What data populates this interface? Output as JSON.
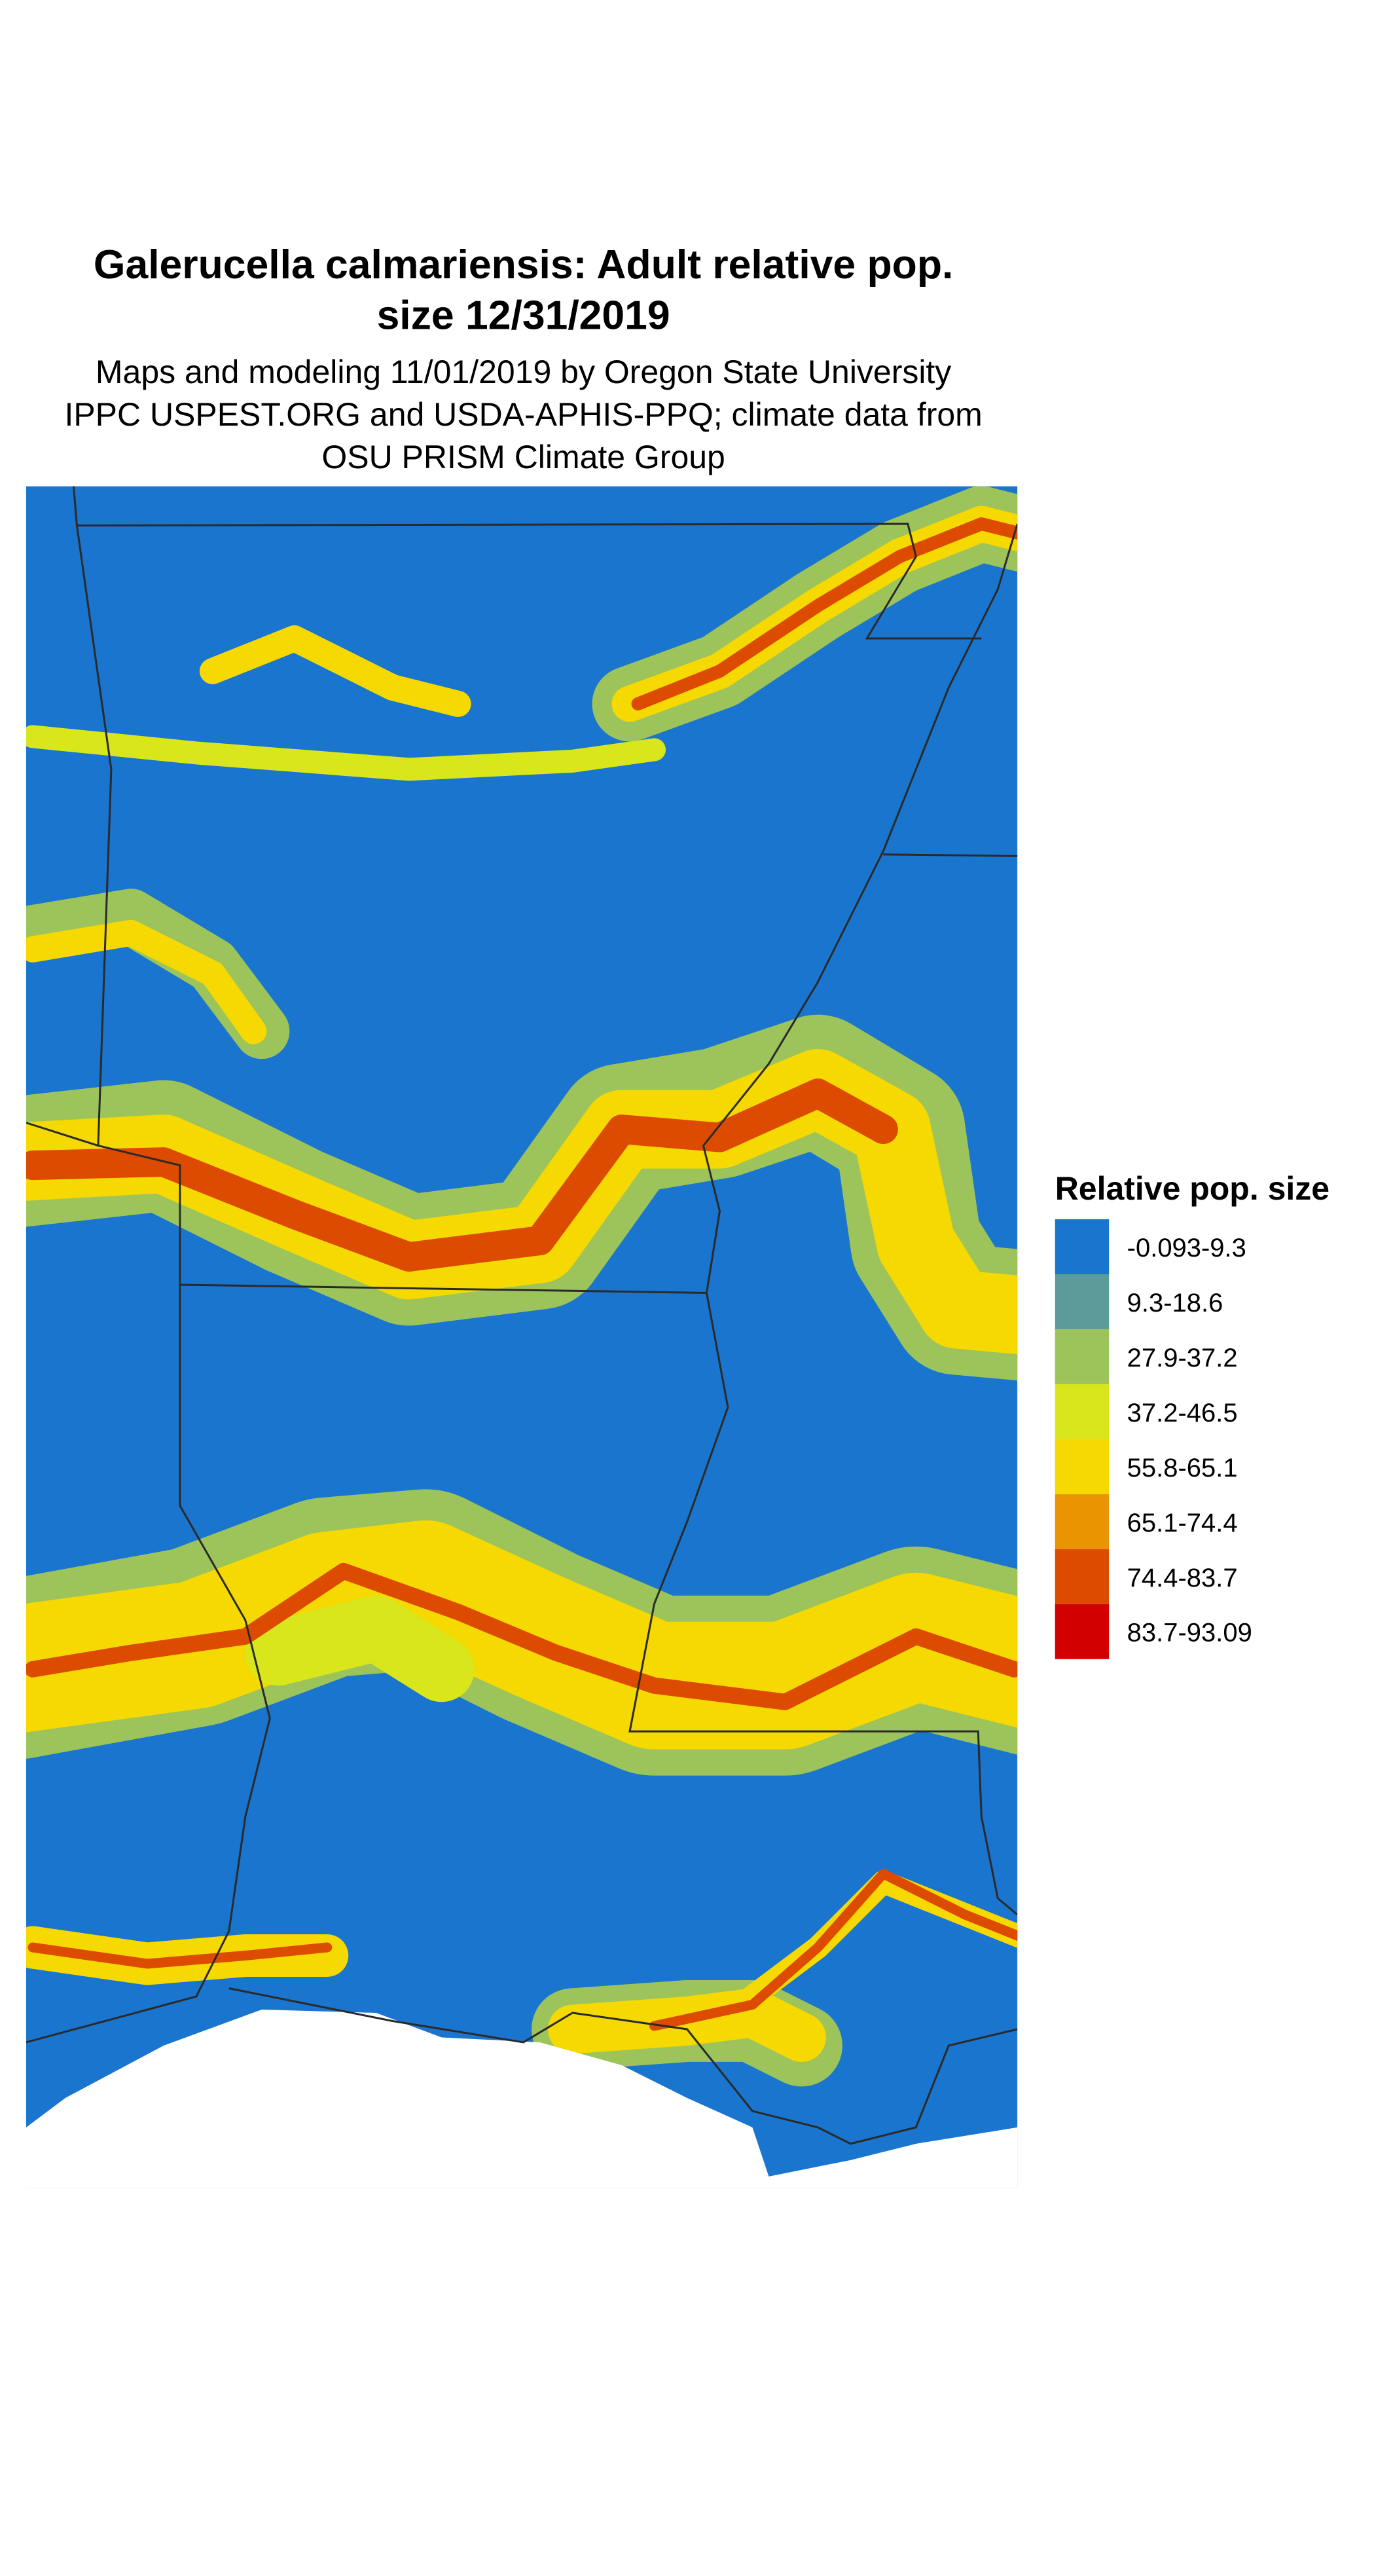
{
  "header": {
    "title": [
      "Galerucella calmariensis: Adult relative pop.",
      "size 12/31/2019"
    ],
    "subtitle": [
      "Maps and modeling 11/01/2019 by Oregon State University",
      "IPPC USPEST.ORG and USDA-APHIS-PPQ; climate data from",
      "OSU PRISM Climate Group"
    ]
  },
  "legend": {
    "title": "Relative pop. size",
    "items": [
      {
        "label": "-0.093-9.3",
        "color": "#1a75cf"
      },
      {
        "label": "9.3-18.6",
        "color": "#5b9c9a"
      },
      {
        "label": "27.9-37.2",
        "color": "#9dc45a"
      },
      {
        "label": "37.2-46.5",
        "color": "#d9e61c"
      },
      {
        "label": "55.8-65.1",
        "color": "#f5d900"
      },
      {
        "label": "65.1-74.4",
        "color": "#e99400"
      },
      {
        "label": "74.4-83.7",
        "color": "#dd4b00"
      },
      {
        "label": "83.7-93.09",
        "color": "#d20000"
      }
    ]
  }
}
